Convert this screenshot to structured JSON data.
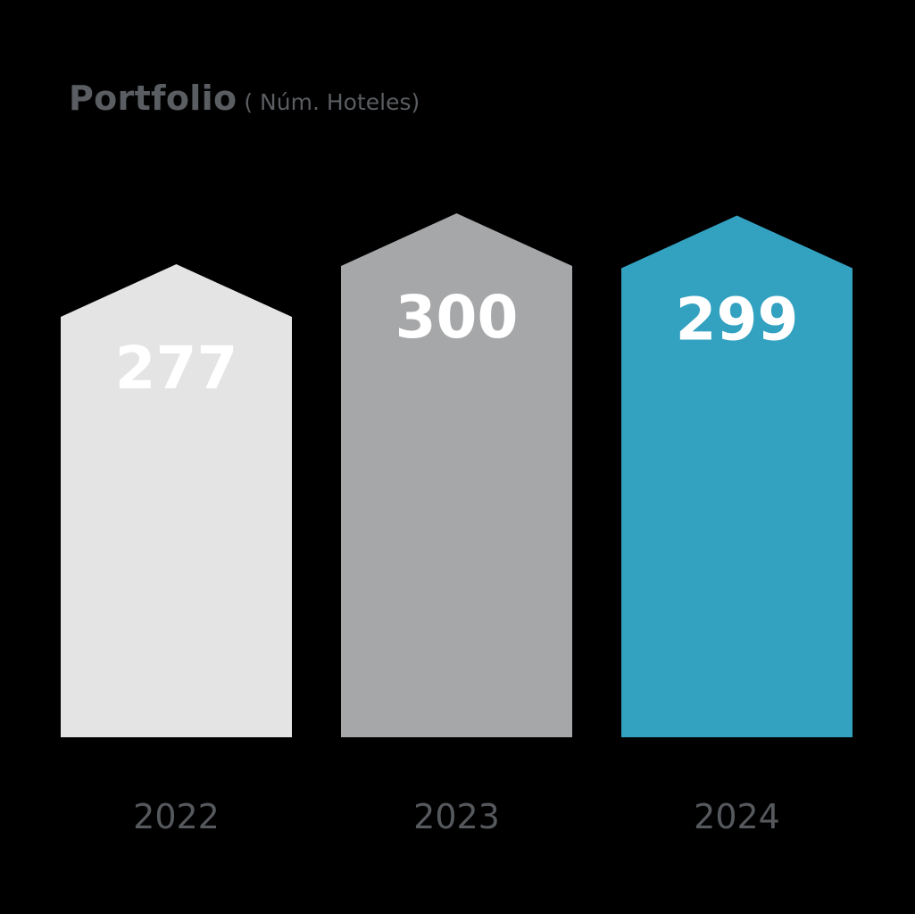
{
  "chart_data": {
    "type": "bar",
    "title": "Portfolio",
    "subtitle": "( Núm. Hoteles)",
    "categories": [
      "2022",
      "2023",
      "2024"
    ],
    "values": [
      277,
      300,
      299
    ],
    "ylim": [
      0,
      300
    ],
    "colors": [
      "#e4e4e4",
      "#a6a7a9",
      "#33a1c0"
    ],
    "label_color": "#ffffff",
    "category_label_color": "#55585c",
    "grid": false,
    "legend": "none"
  }
}
